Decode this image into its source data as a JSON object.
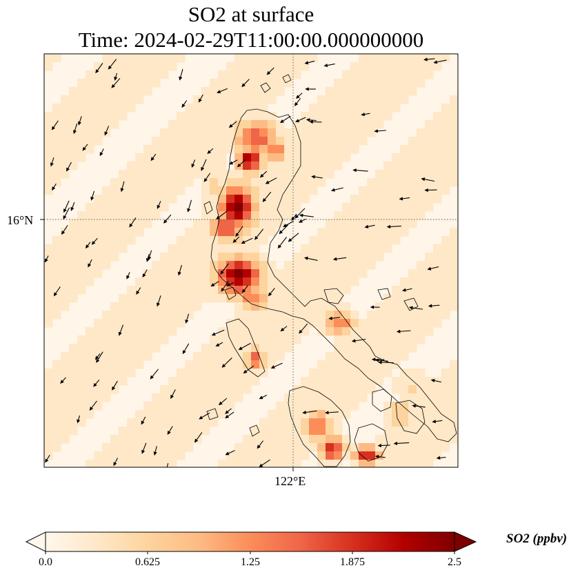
{
  "title": {
    "line1": "SO2 at surface",
    "line2": "Time: 2024-02-29T11:00:00.000000000"
  },
  "map": {
    "lat_label": "16°N",
    "lon_label": "122°E",
    "gridline_style": "dotted"
  },
  "colorbar": {
    "label": "SO2 (ppbv)",
    "ticks": [
      "0.0",
      "0.625",
      "1.25",
      "1.875",
      "2.5"
    ],
    "min": 0,
    "max": 2.5,
    "extend": "both",
    "colormap": [
      "#fff7ec",
      "#fee8c8",
      "#fdd49e",
      "#fdbb84",
      "#fc8d59",
      "#ef6548",
      "#d7301f",
      "#b30000",
      "#7f0000"
    ]
  },
  "colors": {
    "background": "#fff5e8",
    "coastline": "#000000",
    "vectors": "#000000"
  }
}
